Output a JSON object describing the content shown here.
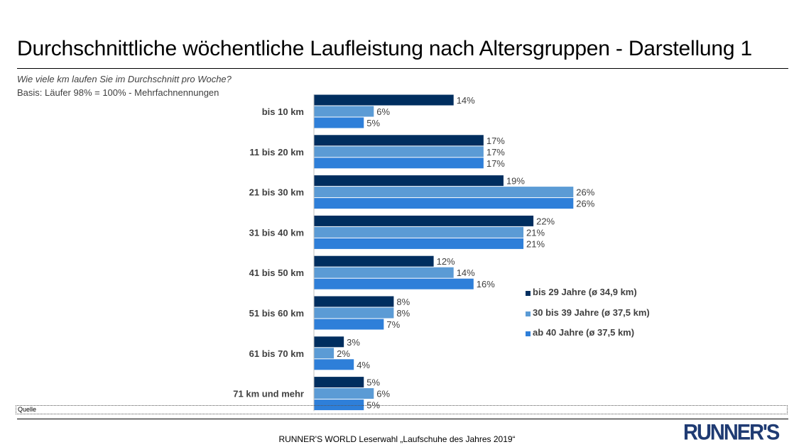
{
  "title": "Durchschnittliche wöchentliche Laufleistung nach Altersgruppen - Darstellung 1",
  "subtitle": "Wie viele km laufen Sie im Durchschnitt pro Woche?",
  "basis": "Basis: Läufer 98% = 100% - Mehrfachnennungen",
  "quelle": "Quelle",
  "footer": "RUNNER'S WORLD Leserwahl „Laufschuhe des Jahres 2019“",
  "logo": "RUNNER'S",
  "chart_data": {
    "type": "bar",
    "orientation": "horizontal",
    "categories": [
      "bis 10 km",
      "11 bis 20 km",
      "21 bis 30 km",
      "31 bis 40 km",
      "41 bis 50 km",
      "51 bis 60 km",
      "61 bis 70 km",
      "71 km und mehr"
    ],
    "series": [
      {
        "name": "bis 29 Jahre (ø 34,9 km)",
        "color": "#002e5f",
        "values": [
          14,
          17,
          19,
          22,
          12,
          8,
          3,
          5
        ]
      },
      {
        "name": "30 bis 39 Jahre (ø 37,5 km)",
        "color": "#5b9bd5",
        "values": [
          6,
          17,
          26,
          21,
          14,
          8,
          2,
          6
        ]
      },
      {
        "name": "ab 40 Jahre (ø 37,5 km)",
        "color": "#2e7fd9",
        "values": [
          5,
          17,
          26,
          21,
          16,
          7,
          4,
          5
        ]
      }
    ],
    "value_suffix": "%",
    "legend_position": "right",
    "grid": false
  }
}
